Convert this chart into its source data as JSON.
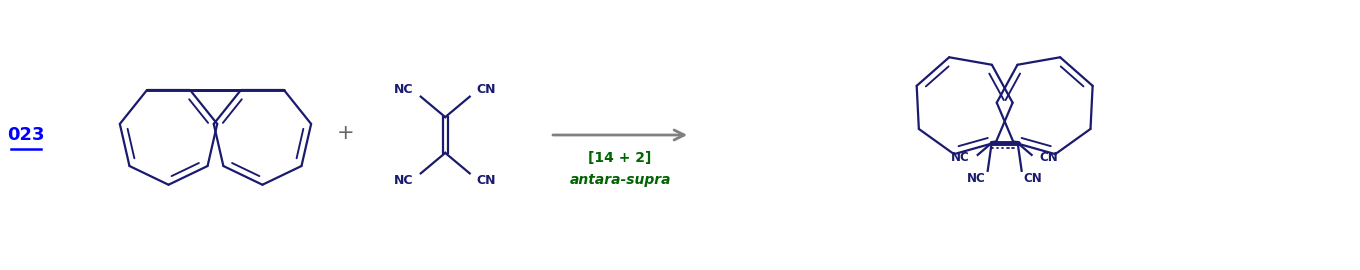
{
  "background_color": "#ffffff",
  "label_color": "#0000ff",
  "molecule_color": "#1a1a6e",
  "arrow_color": "#808080",
  "reaction_label_color": "#006400",
  "compound_number": "023",
  "plus_sign": "+",
  "reaction_label_line1": "[14 + 2]",
  "reaction_label_line2": "antara-supra",
  "figsize": [
    13.6,
    2.7
  ],
  "dpi": 100
}
